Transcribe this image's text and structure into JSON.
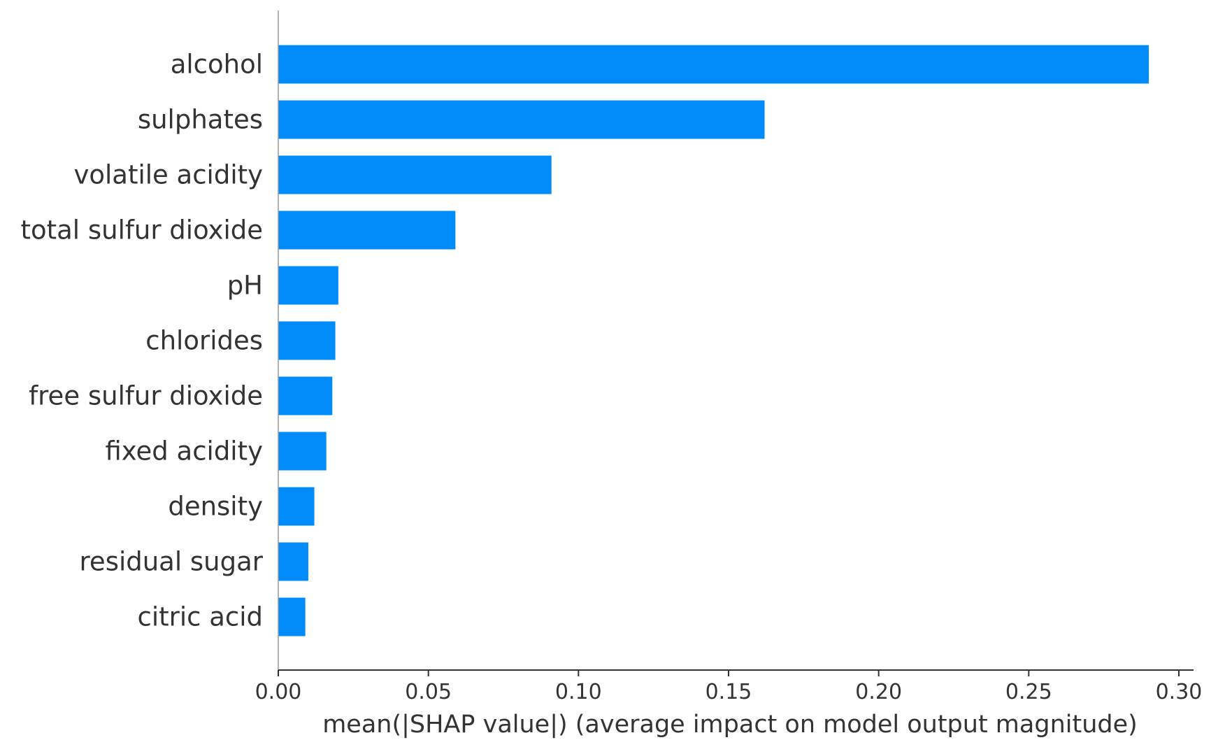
{
  "chart_data": {
    "type": "bar",
    "orientation": "horizontal",
    "categories": [
      "alcohol",
      "sulphates",
      "volatile acidity",
      "total sulfur dioxide",
      "pH",
      "chlorides",
      "free sulfur dioxide",
      "fixed acidity",
      "density",
      "residual sugar",
      "citric acid"
    ],
    "values": [
      0.29,
      0.162,
      0.091,
      0.059,
      0.02,
      0.019,
      0.018,
      0.016,
      0.012,
      0.01,
      0.009
    ],
    "xlabel": "mean(|SHAP value|) (average impact on model output magnitude)",
    "ylabel": "",
    "xlim": [
      0,
      0.3
    ],
    "xticks": [
      "0.00",
      "0.05",
      "0.10",
      "0.15",
      "0.20",
      "0.25",
      "0.30"
    ],
    "grid": false,
    "bar_color": "#008bfb",
    "axis_color": "#333333",
    "label_color": "#333333"
  }
}
